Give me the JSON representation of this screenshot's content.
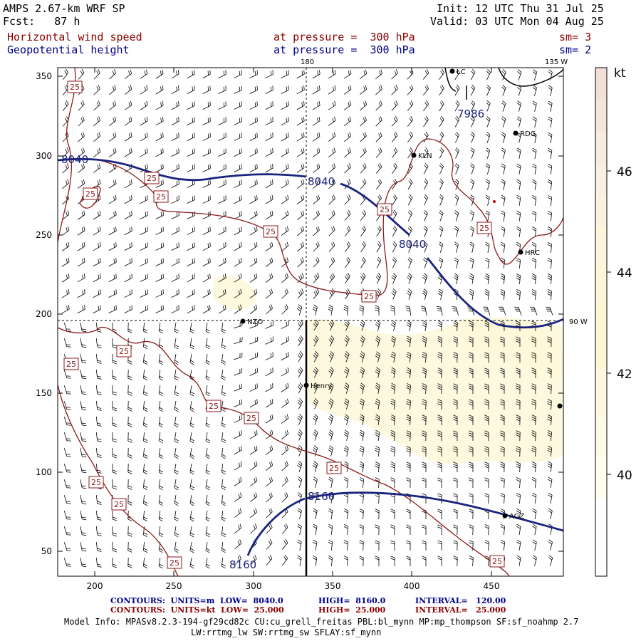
{
  "header": {
    "model": "AMPS 2.67-km WRF SP",
    "fcst_label": "Fcst:",
    "fcst_value": "87 h",
    "init": "Init: 12 UTC Thu 31 Jul 25",
    "valid": "Valid: 03 UTC Mon 04 Aug 25",
    "field1": "Horizontal wind speed",
    "field1_level": "at pressure =  300 hPa",
    "field1_sm": "sm= 3",
    "field2": "Geopotential height",
    "field2_level": "at pressure =  300 hPa",
    "field2_sm": "sm= 2"
  },
  "map": {
    "xticks": [
      "200",
      "250",
      "300",
      "350",
      "400",
      "450"
    ],
    "yticks": [
      "350",
      "300",
      "250",
      "200",
      "150",
      "100",
      "50"
    ],
    "meridian_top": "180",
    "meridian_135": "135 W",
    "meridian_90": "90 W",
    "stations": [
      "NZO",
      "Henry",
      "KLN",
      "RDG",
      "HRC",
      "AGZ",
      "LC"
    ],
    "height_labels": [
      "8040",
      "8040",
      "8040",
      "7986",
      "8160",
      "8160"
    ],
    "speed_label": "25",
    "colors": {
      "height": "#1a237e",
      "speed": "#8b1a1a",
      "shade": "#fdf8d8"
    }
  },
  "colorbar": {
    "unit": "kt",
    "labels": [
      "46",
      "44",
      "42",
      "40"
    ]
  },
  "footer": {
    "line1_a": "CONTOURS:  UNITS=m  LOW=  8040.0",
    "line1_b": "HIGH=  8160.0",
    "line1_c": "INTERVAL=   120.00",
    "line2_a": "CONTOURS:  UNITS=kt  LOW=  25.000",
    "line2_b": "HIGH=  25.000",
    "line2_c": "INTERVAL=   25.000",
    "model_info1": "Model Info: MPASv8.2.3-194-gf29cd82c CU:cu_grell_freitas PBL:bl_mynn MP:mp_thompson SF:sf_noahmp 2.7",
    "model_info2": "LW:rrtmg_lw SW:rrtmg_sw SFLAY:sf_mynn"
  }
}
